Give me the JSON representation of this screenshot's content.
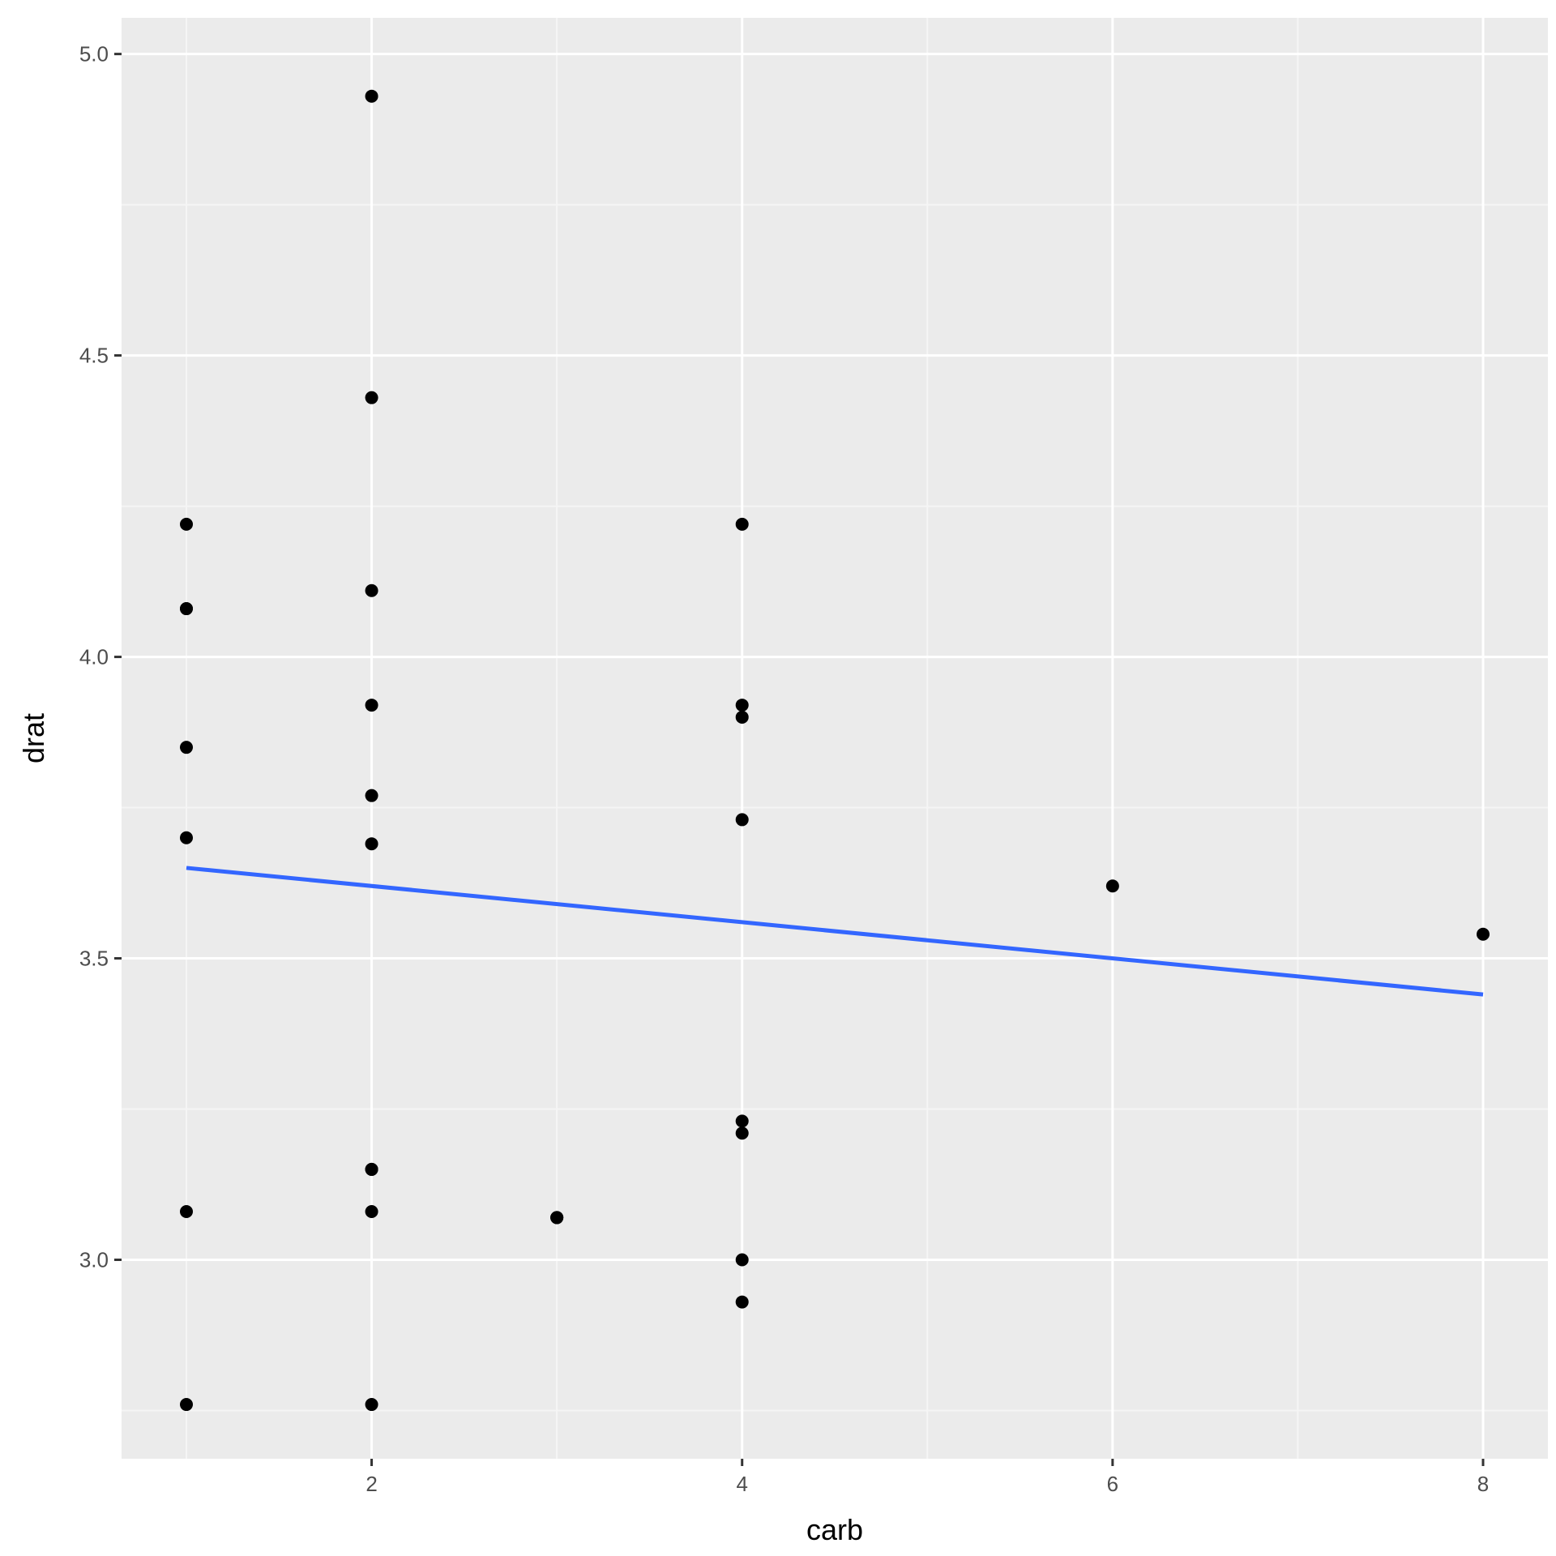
{
  "chart_data": {
    "type": "scatter",
    "title": "",
    "xlabel": "carb",
    "ylabel": "drat",
    "xlim": [
      0.65,
      8.35
    ],
    "ylim": [
      2.67,
      5.06
    ],
    "x_ticks": [
      2,
      4,
      6,
      8
    ],
    "x_tick_labels": [
      "2",
      "4",
      "6",
      "8"
    ],
    "y_ticks": [
      3.0,
      3.5,
      4.0,
      4.5,
      5.0
    ],
    "y_tick_labels": [
      "3.0",
      "3.5",
      "4.0",
      "4.5",
      "5.0"
    ],
    "grid": true,
    "legend": "none",
    "points": [
      {
        "x": 1,
        "y": 4.22
      },
      {
        "x": 1,
        "y": 4.08
      },
      {
        "x": 1,
        "y": 4.08
      },
      {
        "x": 1,
        "y": 3.85
      },
      {
        "x": 1,
        "y": 3.7
      },
      {
        "x": 1,
        "y": 3.08
      },
      {
        "x": 1,
        "y": 2.76
      },
      {
        "x": 2,
        "y": 4.93
      },
      {
        "x": 2,
        "y": 4.43
      },
      {
        "x": 2,
        "y": 4.11
      },
      {
        "x": 2,
        "y": 3.92
      },
      {
        "x": 2,
        "y": 3.77
      },
      {
        "x": 2,
        "y": 3.69
      },
      {
        "x": 2,
        "y": 3.15
      },
      {
        "x": 2,
        "y": 3.15
      },
      {
        "x": 2,
        "y": 3.08
      },
      {
        "x": 2,
        "y": 2.76
      },
      {
        "x": 3,
        "y": 3.07
      },
      {
        "x": 3,
        "y": 3.07
      },
      {
        "x": 3,
        "y": 3.07
      },
      {
        "x": 4,
        "y": 4.22
      },
      {
        "x": 4,
        "y": 3.92
      },
      {
        "x": 4,
        "y": 3.9
      },
      {
        "x": 4,
        "y": 3.73
      },
      {
        "x": 4,
        "y": 3.23
      },
      {
        "x": 4,
        "y": 3.21
      },
      {
        "x": 4,
        "y": 3.0
      },
      {
        "x": 4,
        "y": 2.93
      },
      {
        "x": 6,
        "y": 3.62
      },
      {
        "x": 8,
        "y": 3.54
      }
    ],
    "fit_line": {
      "x": [
        1,
        8
      ],
      "y": [
        3.65,
        3.44
      ]
    },
    "colors": {
      "panel_bg": "#ebebeb",
      "grid_major": "#ffffff",
      "grid_minor": "#f5f5f5",
      "point": "#000000",
      "fit_line": "#3366ff",
      "tick": "#333333"
    }
  }
}
